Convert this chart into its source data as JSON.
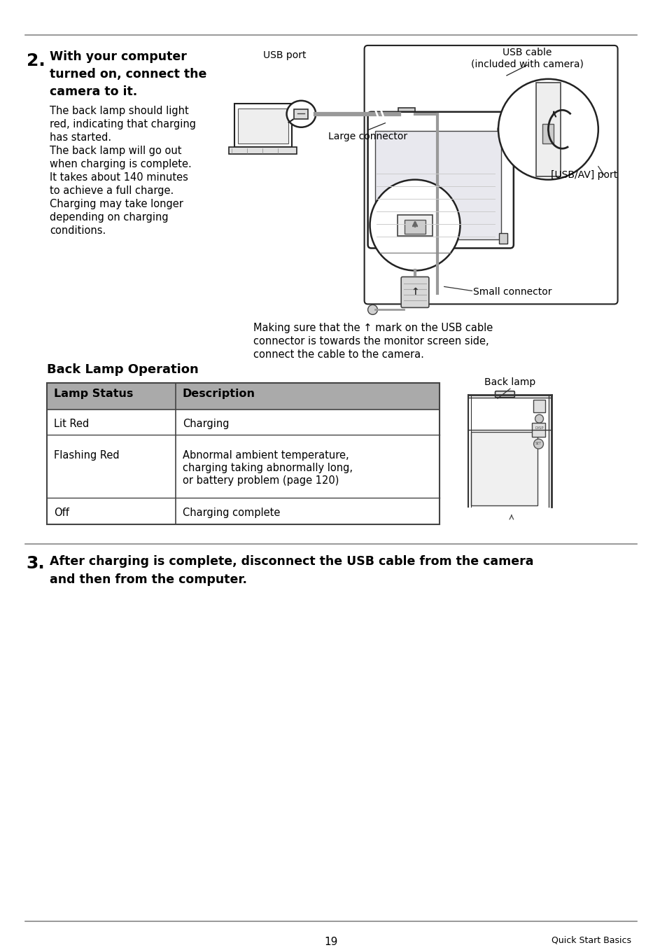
{
  "page_number": "19",
  "footer_right": "Quick Start Basics",
  "bg_color": "#ffffff",
  "section2_number": "2.",
  "section2_title": "With your computer\nturned on, connect the\ncamera to it.",
  "section2_body": "The back lamp should light\nred, indicating that charging\nhas started.\nThe back lamp will go out\nwhen charging is complete.\nIt takes about 140 minutes\nto achieve a full charge.\nCharging may take longer\ndepending on charging\nconditions.",
  "table_title": "Back Lamp Operation",
  "table_header": [
    "Lamp Status",
    "Description"
  ],
  "table_rows": [
    [
      "Lit Red",
      "Charging"
    ],
    [
      "Flashing Red",
      "Abnormal ambient temperature,\ncharging taking abnormally long,\nor battery problem (page 120)"
    ],
    [
      "Off",
      "Charging complete"
    ]
  ],
  "back_lamp_label": "Back lamp",
  "caption_line1": "Making sure that the ↑ mark on the USB cable",
  "caption_line2": "connector is towards the monitor screen side,",
  "caption_line3": "connect the cable to the camera.",
  "usb_port_label": "USB port",
  "usb_cable_label": "USB cable\n(included with camera)",
  "large_connector_label": "Large connector",
  "usb_av_port_label": "[USB/AV] port",
  "small_connector_label": "Small connector",
  "section3_number": "3.",
  "section3_bold_line1": "After charging is complete, disconnect the USB cable from the camera",
  "section3_bold_line2": "and then from the computer.",
  "table_header_bg": "#aaaaaa",
  "table_border_color": "#444444",
  "line_color": "#888888"
}
